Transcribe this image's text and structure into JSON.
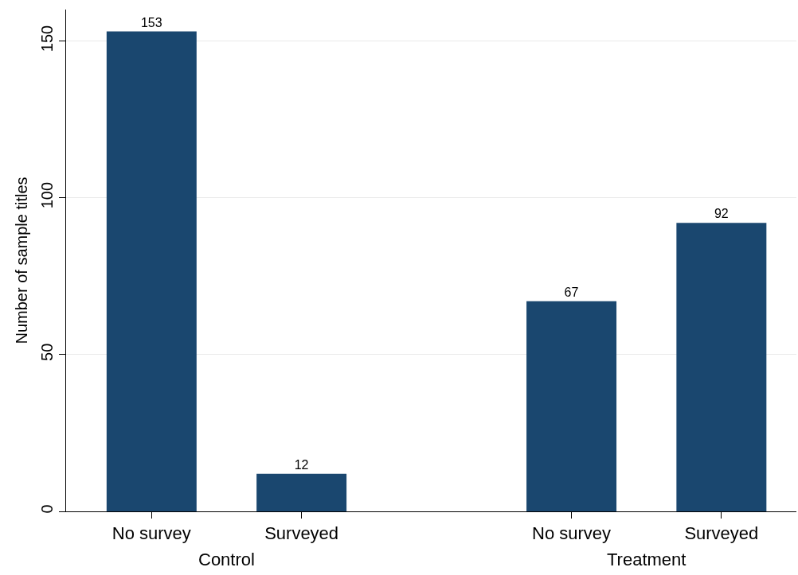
{
  "chart_data": {
    "type": "bar",
    "ylabel": "Number of sample titles",
    "categories": [
      "No survey",
      "Surveyed",
      "No survey",
      "Surveyed"
    ],
    "values": [
      153,
      12,
      67,
      92
    ],
    "color": "#1a476f",
    "ylim": [
      0,
      160
    ],
    "yticks": [
      0,
      50,
      100,
      150
    ],
    "grid": "y",
    "data_labels": true,
    "annotations": [
      "Control",
      "Treatment"
    ]
  }
}
